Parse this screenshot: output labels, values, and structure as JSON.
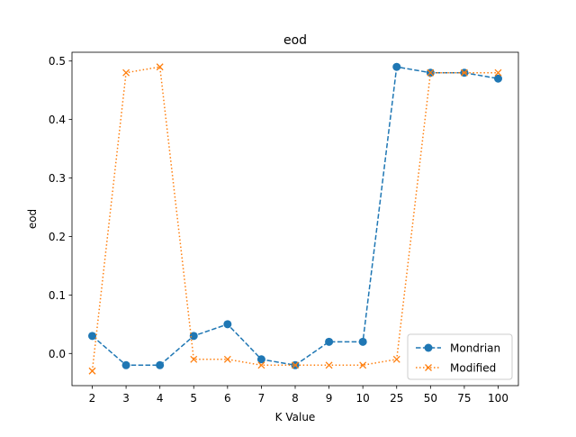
{
  "chart_data": {
    "type": "line",
    "title": "eod",
    "xlabel": "K Value",
    "ylabel": "eod",
    "categories": [
      "2",
      "3",
      "4",
      "5",
      "6",
      "7",
      "8",
      "9",
      "10",
      "25",
      "50",
      "75",
      "100"
    ],
    "ylim": [
      -0.055,
      0.515
    ],
    "yticks": [
      0.0,
      0.1,
      0.2,
      0.3,
      0.4,
      0.5
    ],
    "ytick_labels": [
      "0.0",
      "0.1",
      "0.2",
      "0.3",
      "0.4",
      "0.5"
    ],
    "grid": false,
    "legend_position": "lower-right",
    "series": [
      {
        "name": "Mondrian",
        "color": "#1f77b4",
        "line_style": "dashed",
        "marker": "circle",
        "values": [
          0.03,
          -0.02,
          -0.02,
          0.03,
          0.05,
          -0.01,
          -0.02,
          0.02,
          0.02,
          0.49,
          0.48,
          0.48,
          0.47
        ]
      },
      {
        "name": "Modified",
        "color": "#ff7f0e",
        "line_style": "dotted",
        "marker": "x",
        "values": [
          -0.03,
          0.48,
          0.49,
          -0.01,
          -0.01,
          -0.02,
          -0.02,
          -0.02,
          -0.02,
          -0.01,
          0.48,
          0.48,
          0.48
        ]
      }
    ]
  }
}
